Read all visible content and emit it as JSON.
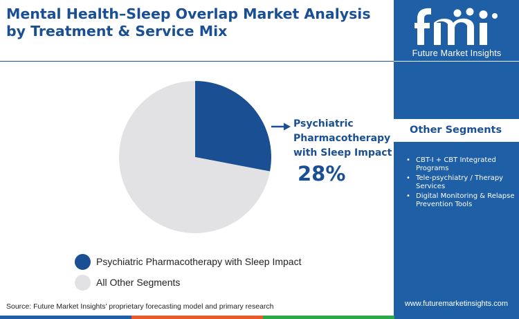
{
  "title": "Mental Health–Sleep Overlap Market Analysis by Treatment & Service Mix",
  "brand": {
    "logo_letters": "fmi",
    "logo_subtitle": "Future Market Insights",
    "url": "www.futuremarketinsights.com"
  },
  "sidebar": {
    "heading": "Other Segments",
    "items": [
      "CBT-I + CBT Integrated Programs",
      "Tele-psychiatry / Therapy Services",
      "Digital Monitoring & Relapse Prevention Tools"
    ]
  },
  "callout": {
    "label": "Psychiatric Pharmacotherapy with Sleep Impact",
    "value": "28%"
  },
  "source": "Source: Future Market Insights’ proprietary forecasting model and primary research",
  "colors": {
    "primary": "#1b4f93",
    "other": "#e2e2e4",
    "sidebar": "#1e5fa6",
    "bottom_bar": [
      "#1e5fa6",
      "#e85c2b",
      "#2aa84a",
      "#1e5fa6"
    ]
  },
  "chart_data": {
    "type": "pie",
    "slices": [
      {
        "name": "Psychiatric Pharmacotherapy with Sleep Impact",
        "value": 28,
        "color": "#1b4f93"
      },
      {
        "name": "All Other Segments",
        "value": 72,
        "color": "#e2e2e4"
      }
    ],
    "legend": [
      "Psychiatric Pharmacotherapy with Sleep Impact",
      "All Other Segments"
    ],
    "legend_position": "bottom-left"
  }
}
